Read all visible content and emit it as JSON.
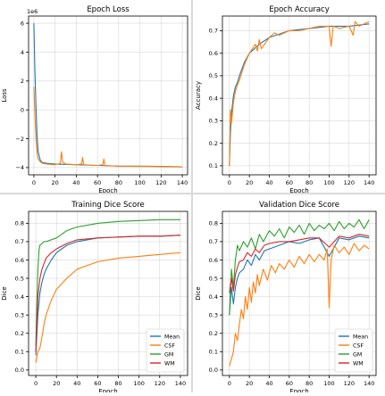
{
  "colors": {
    "blue": "#1f77b4",
    "orange": "#ff7f0e",
    "green": "#2ca02c",
    "red": "#d62728"
  },
  "chart_data": [
    {
      "type": "line",
      "title": "Epoch Loss",
      "xlabel": "Epoch",
      "ylabel": "Loss",
      "offset_text": "1e6",
      "xlim": [
        -5,
        145
      ],
      "ylim": [
        -4.5,
        6.5
      ],
      "xticks": [
        0,
        20,
        40,
        60,
        80,
        100,
        120,
        140
      ],
      "yticks": [
        -4,
        -2,
        0,
        2,
        4,
        6
      ],
      "ytick_labels": [
        "−4",
        "−2",
        "0",
        "2",
        "4",
        "6"
      ],
      "grid": true,
      "series": [
        {
          "color": "blue",
          "x": [
            0,
            1,
            2,
            3,
            4,
            6,
            8,
            12,
            20,
            40,
            60,
            80,
            100,
            120,
            140
          ],
          "y": [
            6.0,
            2.6,
            0.2,
            -1.8,
            -2.9,
            -3.5,
            -3.65,
            -3.7,
            -3.75,
            -3.8,
            -3.85,
            -3.9,
            -3.9,
            -3.92,
            -3.95
          ]
        },
        {
          "color": "orange",
          "x": [
            0,
            1,
            2,
            3,
            4,
            6,
            8,
            12,
            20,
            25,
            26,
            27,
            30,
            40,
            45,
            46,
            47,
            60,
            65,
            66,
            67,
            80,
            100,
            120,
            140
          ],
          "y": [
            1.6,
            -0.4,
            -2.0,
            -3.0,
            -3.4,
            -3.6,
            -3.7,
            -3.75,
            -3.8,
            -3.7,
            -2.9,
            -3.6,
            -3.75,
            -3.8,
            -3.75,
            -3.3,
            -3.8,
            -3.85,
            -3.8,
            -3.4,
            -3.85,
            -3.9,
            -3.92,
            -3.93,
            -3.95
          ]
        }
      ]
    },
    {
      "type": "line",
      "title": "Epoch Accuracy",
      "xlabel": "Epoch",
      "ylabel": "Accuracy",
      "xlim": [
        -7,
        147
      ],
      "ylim": [
        0.06,
        0.765
      ],
      "xticks": [
        0,
        20,
        40,
        60,
        80,
        100,
        120,
        140
      ],
      "yticks": [
        0.1,
        0.2,
        0.3,
        0.4,
        0.5,
        0.6,
        0.7
      ],
      "grid": true,
      "series": [
        {
          "color": "blue",
          "x": [
            0,
            1,
            2,
            4,
            6,
            8,
            10,
            15,
            20,
            30,
            40,
            60,
            80,
            100,
            120,
            140
          ],
          "y": [
            0.1,
            0.24,
            0.33,
            0.41,
            0.45,
            0.47,
            0.5,
            0.56,
            0.6,
            0.64,
            0.67,
            0.7,
            0.71,
            0.72,
            0.72,
            0.73
          ]
        },
        {
          "color": "orange",
          "x": [
            0,
            1,
            2,
            4,
            6,
            8,
            10,
            15,
            20,
            26,
            28,
            30,
            32,
            40,
            45,
            50,
            60,
            70,
            80,
            90,
            100,
            102,
            104,
            110,
            120,
            124,
            126,
            130,
            135,
            140
          ],
          "y": [
            0.1,
            0.35,
            0.29,
            0.38,
            0.43,
            0.46,
            0.48,
            0.55,
            0.6,
            0.64,
            0.61,
            0.66,
            0.62,
            0.67,
            0.69,
            0.68,
            0.7,
            0.7,
            0.71,
            0.72,
            0.72,
            0.63,
            0.72,
            0.71,
            0.72,
            0.68,
            0.74,
            0.72,
            0.73,
            0.74
          ]
        }
      ]
    },
    {
      "type": "line",
      "title": "Training Dice Score",
      "xlabel": "Epoch",
      "ylabel": "Dice",
      "xlim": [
        -7,
        147
      ],
      "ylim": [
        -0.03,
        0.865
      ],
      "xticks": [
        0,
        20,
        40,
        60,
        80,
        100,
        120,
        140
      ],
      "yticks": [
        0.0,
        0.1,
        0.2,
        0.3,
        0.4,
        0.5,
        0.6,
        0.7,
        0.8
      ],
      "grid": true,
      "legend_position": "lower-right",
      "series": [
        {
          "name": "Mean",
          "color": "blue",
          "x": [
            0,
            2,
            4,
            6,
            8,
            10,
            15,
            20,
            30,
            40,
            60,
            80,
            100,
            120,
            140
          ],
          "y": [
            0.08,
            0.3,
            0.42,
            0.48,
            0.52,
            0.55,
            0.6,
            0.64,
            0.68,
            0.7,
            0.72,
            0.725,
            0.73,
            0.73,
            0.735
          ]
        },
        {
          "name": "CSF",
          "color": "orange",
          "x": [
            0,
            2,
            4,
            6,
            8,
            10,
            15,
            20,
            30,
            40,
            60,
            80,
            100,
            120,
            140
          ],
          "y": [
            0.04,
            0.1,
            0.12,
            0.18,
            0.25,
            0.3,
            0.38,
            0.44,
            0.5,
            0.55,
            0.59,
            0.61,
            0.62,
            0.63,
            0.64
          ]
        },
        {
          "name": "GM",
          "color": "green",
          "x": [
            0,
            1,
            2,
            3,
            4,
            6,
            8,
            10,
            20,
            30,
            40,
            60,
            80,
            100,
            120,
            140
          ],
          "y": [
            0.13,
            0.35,
            0.55,
            0.65,
            0.68,
            0.69,
            0.7,
            0.7,
            0.72,
            0.76,
            0.78,
            0.8,
            0.81,
            0.815,
            0.82,
            0.82
          ]
        },
        {
          "name": "WM",
          "color": "red",
          "x": [
            0,
            2,
            4,
            6,
            8,
            10,
            15,
            20,
            30,
            40,
            60,
            80,
            100,
            120,
            140
          ],
          "y": [
            0.1,
            0.4,
            0.5,
            0.55,
            0.58,
            0.61,
            0.64,
            0.66,
            0.69,
            0.71,
            0.72,
            0.725,
            0.73,
            0.73,
            0.735
          ]
        }
      ]
    },
    {
      "type": "line",
      "title": "Validation Dice Score",
      "xlabel": "Epoch",
      "ylabel": "Dice",
      "xlim": [
        -7,
        147
      ],
      "ylim": [
        -0.03,
        0.865
      ],
      "xticks": [
        0,
        20,
        40,
        60,
        80,
        100,
        120,
        140
      ],
      "yticks": [
        0.0,
        0.1,
        0.2,
        0.3,
        0.4,
        0.5,
        0.6,
        0.7,
        0.8
      ],
      "grid": true,
      "legend_position": "lower-right",
      "series": [
        {
          "name": "Mean",
          "color": "blue",
          "x": [
            0,
            2,
            4,
            6,
            8,
            10,
            14,
            18,
            22,
            26,
            30,
            35,
            40,
            50,
            60,
            70,
            80,
            90,
            100,
            110,
            120,
            130,
            140
          ],
          "y": [
            0.3,
            0.45,
            0.36,
            0.45,
            0.5,
            0.53,
            0.55,
            0.6,
            0.57,
            0.63,
            0.6,
            0.65,
            0.66,
            0.68,
            0.7,
            0.69,
            0.71,
            0.72,
            0.62,
            0.72,
            0.71,
            0.73,
            0.72
          ]
        },
        {
          "name": "CSF",
          "color": "orange",
          "x": [
            0,
            2,
            4,
            6,
            8,
            10,
            12,
            14,
            16,
            18,
            20,
            22,
            24,
            26,
            28,
            30,
            34,
            38,
            42,
            46,
            50,
            55,
            60,
            65,
            70,
            75,
            80,
            85,
            90,
            95,
            98,
            100,
            102,
            105,
            110,
            115,
            120,
            125,
            130,
            135,
            140
          ],
          "y": [
            0.02,
            0.06,
            0.1,
            0.2,
            0.16,
            0.25,
            0.33,
            0.28,
            0.4,
            0.33,
            0.45,
            0.37,
            0.48,
            0.42,
            0.52,
            0.46,
            0.55,
            0.49,
            0.57,
            0.53,
            0.58,
            0.55,
            0.6,
            0.56,
            0.62,
            0.58,
            0.63,
            0.59,
            0.63,
            0.6,
            0.66,
            0.34,
            0.6,
            0.68,
            0.64,
            0.67,
            0.63,
            0.69,
            0.65,
            0.68,
            0.66
          ]
        },
        {
          "name": "GM",
          "color": "green",
          "x": [
            0,
            2,
            4,
            6,
            8,
            10,
            14,
            18,
            22,
            26,
            30,
            34,
            40,
            45,
            50,
            55,
            60,
            65,
            70,
            75,
            80,
            85,
            90,
            95,
            100,
            105,
            110,
            115,
            120,
            125,
            130,
            135,
            140
          ],
          "y": [
            0.3,
            0.55,
            0.45,
            0.6,
            0.68,
            0.65,
            0.7,
            0.67,
            0.72,
            0.66,
            0.74,
            0.7,
            0.76,
            0.73,
            0.77,
            0.72,
            0.78,
            0.75,
            0.79,
            0.74,
            0.8,
            0.76,
            0.79,
            0.77,
            0.8,
            0.76,
            0.81,
            0.77,
            0.8,
            0.78,
            0.82,
            0.77,
            0.82
          ]
        },
        {
          "name": "WM",
          "color": "red",
          "x": [
            0,
            2,
            4,
            6,
            8,
            10,
            14,
            18,
            22,
            26,
            30,
            35,
            40,
            50,
            60,
            70,
            80,
            90,
            100,
            110,
            120,
            130,
            140
          ],
          "y": [
            0.42,
            0.5,
            0.43,
            0.52,
            0.56,
            0.59,
            0.6,
            0.64,
            0.62,
            0.66,
            0.64,
            0.68,
            0.69,
            0.7,
            0.7,
            0.71,
            0.72,
            0.72,
            0.67,
            0.73,
            0.72,
            0.74,
            0.73
          ]
        }
      ]
    }
  ]
}
